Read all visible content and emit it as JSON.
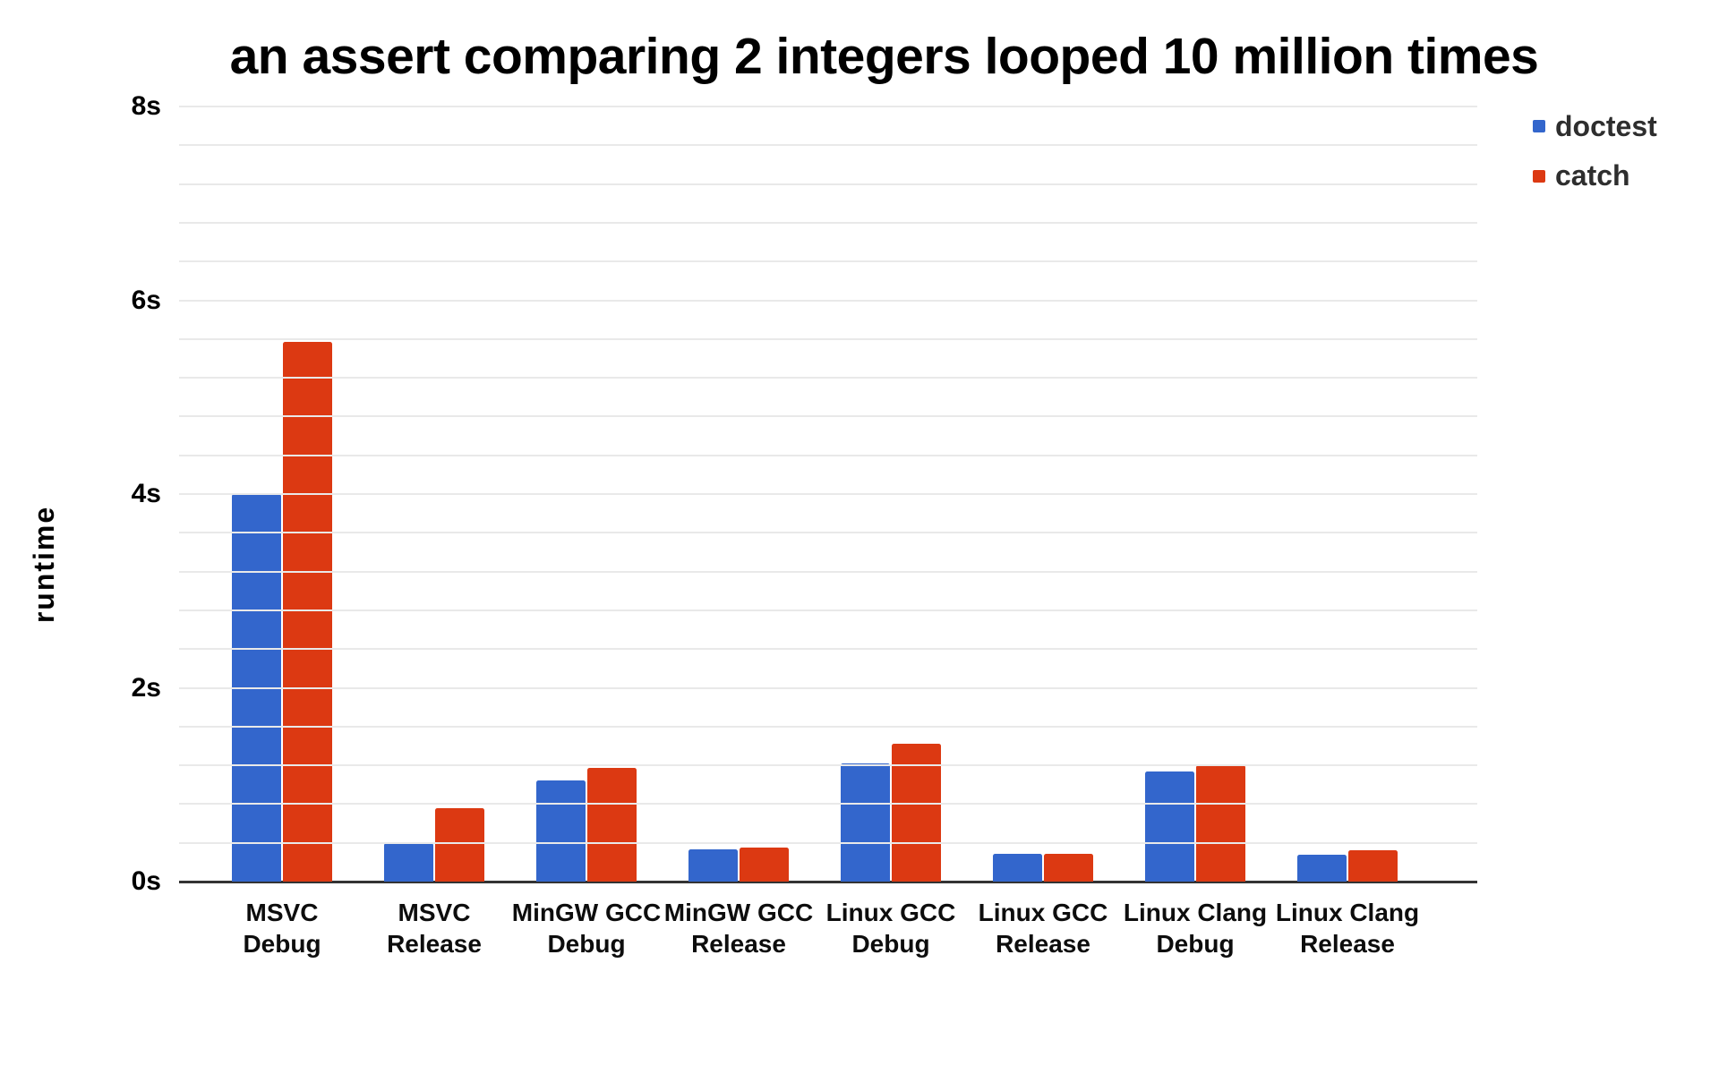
{
  "page": {
    "background": "#ffffff"
  },
  "chart_data": {
    "type": "bar",
    "title": "an assert comparing 2 integers looped 10 million times",
    "ylabel": "runtime",
    "xlabel": "",
    "ylim": [
      0,
      8
    ],
    "ytick_major": 2,
    "ytick_minor": 0.4,
    "yticks": [
      "0s",
      "2s",
      "4s",
      "6s",
      "8s"
    ],
    "grid": true,
    "legend_position": "top-right",
    "axis_color": "#333333",
    "gridline_color": "#e9e9e9",
    "categories": [
      [
        "MSVC",
        "Debug"
      ],
      [
        "MSVC",
        "Release"
      ],
      [
        "MinGW GCC",
        "Debug"
      ],
      [
        "MinGW GCC",
        "Release"
      ],
      [
        "Linux GCC",
        "Debug"
      ],
      [
        "Linux GCC",
        "Release"
      ],
      [
        "Linux Clang",
        "Debug"
      ],
      [
        "Linux Clang",
        "Release"
      ]
    ],
    "series": [
      {
        "name": "doctest",
        "color": "#3366cc",
        "values": [
          4.0,
          0.4,
          1.04,
          0.33,
          1.22,
          0.29,
          1.14,
          0.28
        ]
      },
      {
        "name": "catch",
        "color": "#dc3912",
        "values": [
          5.57,
          0.76,
          1.17,
          0.35,
          1.42,
          0.29,
          1.2,
          0.32
        ]
      }
    ]
  }
}
